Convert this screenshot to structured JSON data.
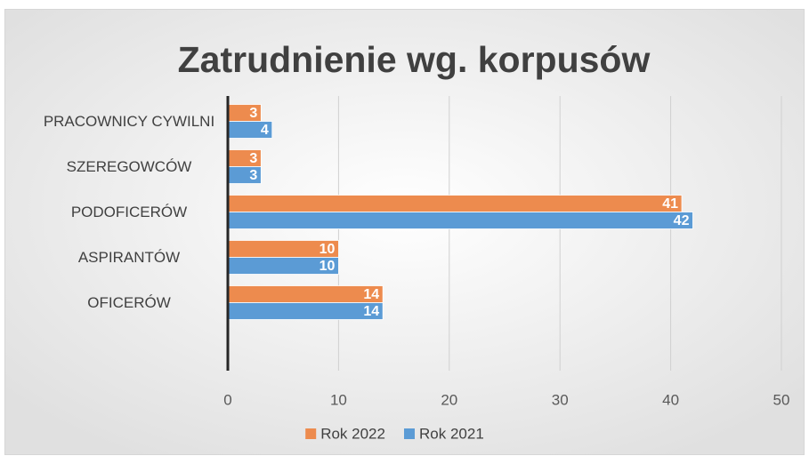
{
  "chart_data": {
    "type": "hbar",
    "title": "Zatrudnienie wg. korpusów",
    "categories": [
      "PRACOWNICY CYWILNI",
      "SZEREGOWCÓW",
      "PODOFICERÓW",
      "ASPIRANTÓW",
      "OFICERÓW",
      null
    ],
    "series": [
      {
        "name": "Rok 2022",
        "color": "#ed8b4e",
        "values": [
          3,
          3,
          41,
          10,
          14,
          null
        ]
      },
      {
        "name": "Rok 2021",
        "color": "#5b9bd5",
        "values": [
          4,
          3,
          42,
          10,
          14,
          null
        ]
      }
    ],
    "xlim": [
      0,
      50
    ],
    "xticks": [
      0,
      10,
      20,
      30,
      40,
      50
    ],
    "grid": true,
    "legend": "bottom"
  }
}
